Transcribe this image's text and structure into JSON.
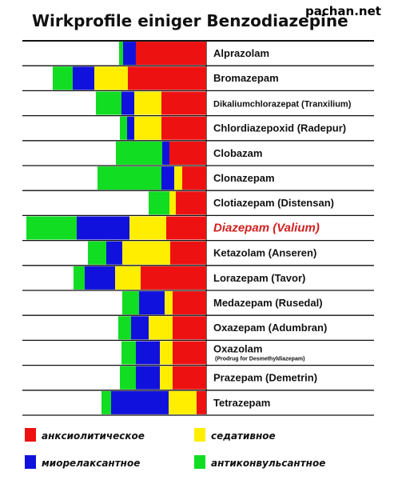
{
  "title": "Wirkprofile einiger Benzodiazepine",
  "watermark": "pachan.net",
  "colors": {
    "anxiolytic": "#ee1111",
    "muscle": "#1111dd",
    "sedative": "#ffee00",
    "anticonvulsant": "#11dd22",
    "highlight": "#d02020",
    "line": "#111111"
  },
  "chart_data": {
    "type": "bar",
    "stacked": true,
    "title": "Wirkprofile einiger Benzodiazepine",
    "categories": [
      "Alprazolam",
      "Bromazepam",
      "Dikaliumchlorazepat (Tranxilium)",
      "Chlordiazepoxid (Radepur)",
      "Clobazam",
      "Clonazepam",
      "Clotiazepam (Distensan)",
      "Diazepam (Valium)",
      "Ketazolam (Anseren)",
      "Lorazepam (Tavor)",
      "Medazepam (Rusedal)",
      "Oxazepam (Adumbran)",
      "Oxazolam",
      "Prazepam (Demetrin)",
      "Tetrazepam"
    ],
    "subtitles": [
      "",
      "",
      "",
      "",
      "",
      "",
      "",
      "",
      "",
      "",
      "",
      "",
      "(Prodrug for Desmethyldiazepam)",
      "",
      ""
    ],
    "highlighted": "Diazepam (Valium)",
    "series": [
      {
        "name": "анксиолитическое",
        "values": [
          88,
          98,
          56,
          56,
          46,
          30,
          38,
          50,
          45,
          82,
          42,
          42,
          42,
          42,
          12
        ]
      },
      {
        "name": "седативное",
        "values": [
          0,
          42,
          34,
          34,
          0,
          10,
          8,
          46,
          60,
          32,
          10,
          30,
          16,
          16,
          35
        ]
      },
      {
        "name": "миорелаксантное",
        "values": [
          16,
          27,
          16,
          9,
          9,
          16,
          0,
          66,
          20,
          38,
          32,
          22,
          30,
          30,
          72
        ]
      },
      {
        "name": "антиконвульсантное",
        "values": [
          5,
          25,
          32,
          9,
          58,
          80,
          26,
          63,
          23,
          14,
          21,
          16,
          18,
          20,
          12
        ]
      }
    ],
    "legend": [
      "анксиолитическое",
      "седативное",
      "миорелаксантное",
      "антиконвульсантное"
    ],
    "legend_placement": "bottom"
  }
}
